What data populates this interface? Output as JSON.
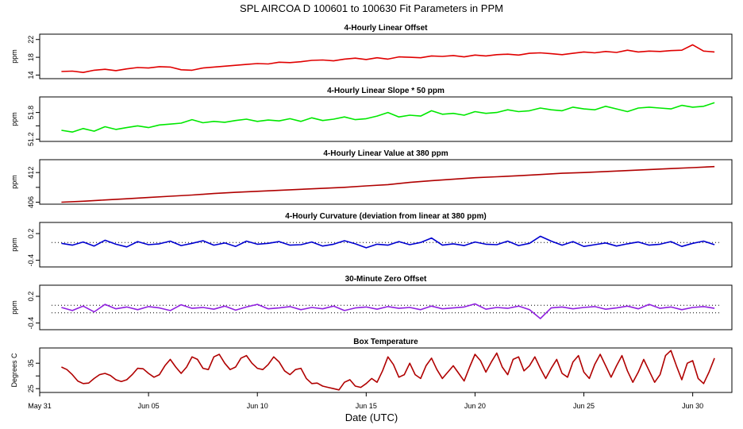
{
  "figure": {
    "title": "SPL   AIRCOA D   100601 to 100630   Fit Parameters in PPM",
    "xlabel": "Date (UTC)"
  },
  "x_axis": {
    "min": 0,
    "max": 31.8,
    "ticks": [
      {
        "day": 0,
        "label": "May 31"
      },
      {
        "day": 5,
        "label": "Jun 05"
      },
      {
        "day": 10,
        "label": "Jun 10"
      },
      {
        "day": 15,
        "label": "Jun 15"
      },
      {
        "day": 20,
        "label": "Jun 20"
      },
      {
        "day": 25,
        "label": "Jun 25"
      },
      {
        "day": 30,
        "label": "Jun 30"
      }
    ]
  },
  "chart_data": [
    {
      "type": "line",
      "title": "4-Hourly Linear Offset",
      "ylabel": "ppm",
      "color": "#e00000",
      "ylim": [
        13.2,
        23.2
      ],
      "yticks": [
        14,
        18,
        22
      ],
      "x": [
        1.0,
        1.5,
        2.0,
        2.5,
        3.0,
        3.5,
        4.0,
        4.5,
        5.0,
        5.5,
        6.0,
        6.5,
        7.0,
        7.5,
        8.0,
        8.5,
        9.0,
        9.5,
        10.0,
        10.5,
        11.0,
        11.5,
        12.0,
        12.5,
        13.0,
        13.5,
        14.0,
        14.5,
        15.0,
        15.5,
        16.0,
        16.5,
        17.0,
        17.5,
        18.0,
        18.5,
        19.0,
        19.5,
        20.0,
        20.5,
        21.0,
        21.5,
        22.0,
        22.5,
        23.0,
        23.5,
        24.0,
        24.5,
        25.0,
        25.5,
        26.0,
        26.5,
        27.0,
        27.5,
        28.0,
        28.5,
        29.0,
        29.5,
        30.0,
        30.5,
        31.0
      ],
      "y": [
        14.8,
        14.9,
        14.6,
        15.1,
        15.3,
        15.0,
        15.4,
        15.7,
        15.6,
        15.9,
        15.8,
        15.2,
        15.1,
        15.6,
        15.8,
        16.0,
        16.2,
        16.4,
        16.6,
        16.5,
        16.9,
        16.8,
        17.0,
        17.3,
        17.4,
        17.2,
        17.6,
        17.8,
        17.5,
        17.9,
        17.6,
        18.1,
        18.0,
        17.9,
        18.3,
        18.2,
        18.4,
        18.1,
        18.5,
        18.3,
        18.6,
        18.7,
        18.5,
        18.9,
        19.0,
        18.8,
        18.6,
        18.9,
        19.2,
        19.0,
        19.3,
        19.1,
        19.6,
        19.2,
        19.4,
        19.3,
        19.5,
        19.6,
        20.8,
        19.4,
        19.2
      ]
    },
    {
      "type": "line",
      "title": "4-Hourly Linear Slope * 50 ppm",
      "ylabel": "ppm",
      "color": "#00e800",
      "ylim": [
        51.15,
        52.15
      ],
      "yticks": [
        51.2,
        51.5,
        51.8
      ],
      "ytick_labels": [
        "51.2",
        "",
        "51.8"
      ],
      "x": [
        1.0,
        1.5,
        2.0,
        2.5,
        3.0,
        3.5,
        4.0,
        4.5,
        5.0,
        5.5,
        6.0,
        6.5,
        7.0,
        7.5,
        8.0,
        8.5,
        9.0,
        9.5,
        10.0,
        10.5,
        11.0,
        11.5,
        12.0,
        12.5,
        13.0,
        13.5,
        14.0,
        14.5,
        15.0,
        15.5,
        16.0,
        16.5,
        17.0,
        17.5,
        18.0,
        18.5,
        19.0,
        19.5,
        20.0,
        20.5,
        21.0,
        21.5,
        22.0,
        22.5,
        23.0,
        23.5,
        24.0,
        24.5,
        25.0,
        25.5,
        26.0,
        26.5,
        27.0,
        27.5,
        28.0,
        28.5,
        29.0,
        29.5,
        30.0,
        30.5,
        31.0
      ],
      "y": [
        51.4,
        51.36,
        51.44,
        51.38,
        51.48,
        51.42,
        51.46,
        51.5,
        51.46,
        51.52,
        51.54,
        51.56,
        51.64,
        51.57,
        51.6,
        51.58,
        51.62,
        51.65,
        51.6,
        51.63,
        51.61,
        51.66,
        51.6,
        51.68,
        51.62,
        51.65,
        51.7,
        51.64,
        51.66,
        51.72,
        51.8,
        51.7,
        51.74,
        51.72,
        51.84,
        51.76,
        51.78,
        51.74,
        51.82,
        51.78,
        51.8,
        51.86,
        51.82,
        51.84,
        51.9,
        51.86,
        51.84,
        51.92,
        51.88,
        51.86,
        51.94,
        51.88,
        51.82,
        51.9,
        51.92,
        51.9,
        51.88,
        51.96,
        51.92,
        51.94,
        52.02
      ]
    },
    {
      "type": "line",
      "title": "4-Hourly Linear Value at 380 ppm",
      "ylabel": "ppm",
      "color": "#b00000",
      "ylim": [
        405.6,
        414.6
      ],
      "yticks": [
        406,
        409,
        412
      ],
      "ytick_labels": [
        "406",
        "",
        "412"
      ],
      "x": [
        1.0,
        2.0,
        3.0,
        4.0,
        5.0,
        6.0,
        7.0,
        8.0,
        9.0,
        10.0,
        11.0,
        12.0,
        13.0,
        14.0,
        15.0,
        16.0,
        17.0,
        18.0,
        19.0,
        20.0,
        21.0,
        22.0,
        23.0,
        24.0,
        25.0,
        26.0,
        27.0,
        28.0,
        29.0,
        30.0,
        31.0
      ],
      "y": [
        406.0,
        406.2,
        406.45,
        406.7,
        406.95,
        407.2,
        407.45,
        407.75,
        408.0,
        408.2,
        408.4,
        408.6,
        408.8,
        409.0,
        409.3,
        409.55,
        410.0,
        410.35,
        410.65,
        410.95,
        411.15,
        411.35,
        411.6,
        411.85,
        412.0,
        412.2,
        412.4,
        412.6,
        412.8,
        413.0,
        413.2
      ]
    },
    {
      "type": "line",
      "title": "4-Hourly Curvature (deviation from linear at 380 ppm)",
      "ylabel": "ppm",
      "color": "#0000d0",
      "ylim": [
        -0.55,
        0.45
      ],
      "yticks": [
        -0.4,
        0.2
      ],
      "hline": 0,
      "x": [
        1.0,
        1.5,
        2.0,
        2.5,
        3.0,
        3.5,
        4.0,
        4.5,
        5.0,
        5.5,
        6.0,
        6.5,
        7.0,
        7.5,
        8.0,
        8.5,
        9.0,
        9.5,
        10.0,
        10.5,
        11.0,
        11.5,
        12.0,
        12.5,
        13.0,
        13.5,
        14.0,
        14.5,
        15.0,
        15.5,
        16.0,
        16.5,
        17.0,
        17.5,
        18.0,
        18.5,
        19.0,
        19.5,
        20.0,
        20.5,
        21.0,
        21.5,
        22.0,
        22.5,
        23.0,
        23.5,
        24.0,
        24.5,
        25.0,
        25.5,
        26.0,
        26.5,
        27.0,
        27.5,
        28.0,
        28.5,
        29.0,
        29.5,
        30.0,
        30.5,
        31.0
      ],
      "y": [
        -0.02,
        -0.06,
        0.01,
        -0.08,
        0.05,
        -0.04,
        -0.1,
        0.02,
        -0.05,
        -0.03,
        0.03,
        -0.07,
        -0.02,
        0.04,
        -0.06,
        -0.01,
        -0.09,
        0.03,
        -0.04,
        -0.02,
        0.02,
        -0.06,
        -0.05,
        0.01,
        -0.08,
        -0.04,
        0.04,
        -0.03,
        -0.12,
        -0.04,
        -0.06,
        0.02,
        -0.05,
        0.0,
        0.1,
        -0.06,
        -0.03,
        -0.07,
        0.01,
        -0.04,
        -0.05,
        0.03,
        -0.07,
        -0.02,
        0.14,
        0.03,
        -0.06,
        0.02,
        -0.09,
        -0.05,
        -0.01,
        -0.08,
        -0.03,
        0.01,
        -0.06,
        -0.04,
        0.02,
        -0.09,
        -0.02,
        0.03,
        -0.05
      ]
    },
    {
      "type": "line",
      "title": "30-Minute Zero Offset",
      "ylabel": "ppm",
      "color": "#9020e0",
      "ylim": [
        -0.55,
        0.45
      ],
      "yticks": [
        -0.4,
        0.2
      ],
      "hlines": [
        0.0,
        -0.17
      ],
      "x": [
        1.0,
        1.5,
        2.0,
        2.5,
        3.0,
        3.5,
        4.0,
        4.5,
        5.0,
        5.5,
        6.0,
        6.5,
        7.0,
        7.5,
        8.0,
        8.5,
        9.0,
        9.5,
        10.0,
        10.5,
        11.0,
        11.5,
        12.0,
        12.5,
        13.0,
        13.5,
        14.0,
        14.5,
        15.0,
        15.5,
        16.0,
        16.5,
        17.0,
        17.5,
        18.0,
        18.5,
        19.0,
        19.5,
        20.0,
        20.5,
        21.0,
        21.5,
        22.0,
        22.5,
        23.0,
        23.5,
        24.0,
        24.5,
        25.0,
        25.5,
        26.0,
        26.5,
        27.0,
        27.5,
        28.0,
        28.5,
        29.0,
        29.5,
        30.0,
        30.5,
        31.0
      ],
      "y": [
        -0.05,
        -0.12,
        -0.02,
        -0.15,
        0.02,
        -0.08,
        -0.04,
        -0.1,
        -0.03,
        -0.06,
        -0.12,
        0.01,
        -0.07,
        -0.05,
        -0.09,
        -0.02,
        -0.11,
        -0.04,
        0.02,
        -0.08,
        -0.06,
        -0.03,
        -0.1,
        -0.05,
        -0.08,
        -0.02,
        -0.12,
        -0.06,
        -0.04,
        -0.09,
        -0.03,
        -0.07,
        -0.05,
        -0.1,
        -0.02,
        -0.08,
        -0.06,
        -0.04,
        0.03,
        -0.09,
        -0.05,
        -0.07,
        -0.02,
        -0.1,
        -0.3,
        -0.06,
        -0.04,
        -0.08,
        -0.05,
        -0.03,
        -0.09,
        -0.06,
        -0.02,
        -0.08,
        0.02,
        -0.07,
        -0.04,
        -0.1,
        -0.05,
        -0.03,
        -0.07
      ]
    },
    {
      "type": "line",
      "title": "Box Temperature",
      "ylabel": "Degrees C",
      "color": "#b00000",
      "ylim": [
        23.5,
        41.0
      ],
      "yticks": [
        25,
        30,
        35
      ],
      "ytick_labels": [
        "25",
        "",
        "35"
      ],
      "x": [
        1.0,
        1.25,
        1.5,
        1.75,
        2.0,
        2.25,
        2.5,
        2.75,
        3.0,
        3.25,
        3.5,
        3.75,
        4.0,
        4.25,
        4.5,
        4.75,
        5.0,
        5.25,
        5.5,
        5.75,
        6.0,
        6.25,
        6.5,
        6.75,
        7.0,
        7.25,
        7.5,
        7.75,
        8.0,
        8.25,
        8.5,
        8.75,
        9.0,
        9.25,
        9.5,
        9.75,
        10.0,
        10.25,
        10.5,
        10.75,
        11.0,
        11.25,
        11.5,
        11.75,
        12.0,
        12.25,
        12.5,
        12.75,
        13.0,
        13.25,
        13.5,
        13.75,
        14.0,
        14.25,
        14.5,
        14.75,
        15.0,
        15.25,
        15.5,
        15.75,
        16.0,
        16.25,
        16.5,
        16.75,
        17.0,
        17.25,
        17.5,
        17.75,
        18.0,
        18.25,
        18.5,
        18.75,
        19.0,
        19.25,
        19.5,
        19.75,
        20.0,
        20.25,
        20.5,
        20.75,
        21.0,
        21.25,
        21.5,
        21.75,
        22.0,
        22.25,
        22.5,
        22.75,
        23.0,
        23.25,
        23.5,
        23.75,
        24.0,
        24.25,
        24.5,
        24.75,
        25.0,
        25.25,
        25.5,
        25.75,
        26.0,
        26.25,
        26.5,
        26.75,
        27.0,
        27.25,
        27.5,
        27.75,
        28.0,
        28.25,
        28.5,
        28.75,
        29.0,
        29.25,
        29.5,
        29.75,
        30.0,
        30.25,
        30.5,
        30.75,
        31.0
      ],
      "y": [
        33.5,
        32.5,
        30.5,
        28.0,
        27.0,
        27.2,
        29.0,
        30.5,
        31.0,
        30.2,
        28.5,
        27.8,
        28.5,
        30.5,
        33.0,
        32.8,
        31.0,
        29.5,
        30.5,
        34.0,
        36.5,
        33.5,
        31.0,
        33.5,
        37.5,
        36.5,
        33.0,
        32.5,
        37.5,
        38.5,
        35.0,
        32.5,
        33.5,
        37.0,
        38.0,
        35.0,
        33.0,
        32.5,
        34.5,
        37.5,
        35.5,
        32.0,
        30.5,
        32.5,
        33.0,
        29.0,
        27.0,
        27.2,
        26.0,
        25.5,
        25.0,
        24.5,
        27.5,
        28.5,
        26.0,
        25.5,
        27.0,
        29.0,
        27.5,
        32.0,
        37.5,
        34.5,
        29.5,
        30.5,
        35.0,
        30.5,
        29.0,
        34.0,
        37.0,
        32.5,
        29.0,
        31.5,
        34.0,
        31.0,
        28.0,
        33.5,
        38.5,
        36.0,
        31.5,
        35.5,
        39.0,
        33.5,
        30.5,
        36.5,
        37.5,
        32.0,
        34.0,
        37.5,
        33.0,
        29.0,
        33.0,
        36.5,
        31.0,
        29.5,
        35.5,
        38.0,
        31.5,
        29.0,
        34.5,
        38.5,
        34.0,
        29.5,
        34.0,
        38.0,
        32.0,
        27.5,
        31.5,
        36.5,
        32.0,
        27.5,
        30.5,
        38.0,
        40.0,
        34.0,
        28.5,
        35.0,
        36.0,
        29.0,
        27.0,
        31.5,
        37.0
      ]
    }
  ]
}
